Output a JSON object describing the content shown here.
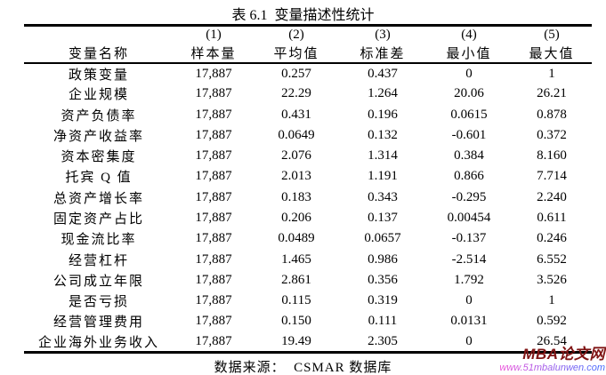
{
  "page": {
    "title": "表 6.1  变量描述性统计",
    "source_note": "数据来源：  CSMAR 数据库"
  },
  "table": {
    "column_numbers": [
      "",
      "(1)",
      "(2)",
      "(3)",
      "(4)",
      "(5)"
    ],
    "column_headers": [
      "变量名称",
      "样本量",
      "平均值",
      "标准差",
      "最小值",
      "最大值"
    ],
    "rows": [
      [
        "政策变量",
        "17,887",
        "0.257",
        "0.437",
        "0",
        "1"
      ],
      [
        "企业规模",
        "17,887",
        "22.29",
        "1.264",
        "20.06",
        "26.21"
      ],
      [
        "资产负债率",
        "17,887",
        "0.431",
        "0.196",
        "0.0615",
        "0.878"
      ],
      [
        "净资产收益率",
        "17,887",
        "0.0649",
        "0.132",
        "-0.601",
        "0.372"
      ],
      [
        "资本密集度",
        "17,887",
        "2.076",
        "1.314",
        "0.384",
        "8.160"
      ],
      [
        "托宾 Q 值",
        "17,887",
        "2.013",
        "1.191",
        "0.866",
        "7.714"
      ],
      [
        "总资产增长率",
        "17,887",
        "0.183",
        "0.343",
        "-0.295",
        "2.240"
      ],
      [
        "固定资产占比",
        "17,887",
        "0.206",
        "0.137",
        "0.00454",
        "0.611"
      ],
      [
        "现金流比率",
        "17,887",
        "0.0489",
        "0.0657",
        "-0.137",
        "0.246"
      ],
      [
        "经营杠杆",
        "17,887",
        "1.465",
        "0.986",
        "-2.514",
        "6.552"
      ],
      [
        "公司成立年限",
        "17,887",
        "2.861",
        "0.356",
        "1.792",
        "3.526"
      ],
      [
        "是否亏损",
        "17,887",
        "0.115",
        "0.319",
        "0",
        "1"
      ],
      [
        "经营管理费用",
        "17,887",
        "0.150",
        "0.111",
        "0.0131",
        "0.592"
      ],
      [
        "企业海外业务收入",
        "17,887",
        "19.49",
        "2.305",
        "0",
        "26.54"
      ]
    ]
  },
  "watermark": {
    "brand": "MBA论文网",
    "url": "www.51mbalunwen.com"
  },
  "colors": {
    "text": "#000000",
    "background": "#ffffff",
    "rule": "#000000",
    "watermark_brand": "#801515",
    "watermark_url_start": "#ef4fd8",
    "watermark_url_end": "#3f6bff"
  },
  "chart_data": {
    "type": "table",
    "title": "表 6.1 变量描述性统计",
    "columns": [
      "变量名称",
      "(1) 样本量",
      "(2) 平均值",
      "(3) 标准差",
      "(4) 最小值",
      "(5) 最大值"
    ],
    "rows": [
      [
        "政策变量",
        "17,887",
        "0.257",
        "0.437",
        "0",
        "1"
      ],
      [
        "企业规模",
        "17,887",
        "22.29",
        "1.264",
        "20.06",
        "26.21"
      ],
      [
        "资产负债率",
        "17,887",
        "0.431",
        "0.196",
        "0.0615",
        "0.878"
      ],
      [
        "净资产收益率",
        "17,887",
        "0.0649",
        "0.132",
        "-0.601",
        "0.372"
      ],
      [
        "资本密集度",
        "17,887",
        "2.076",
        "1.314",
        "0.384",
        "8.160"
      ],
      [
        "托宾 Q 值",
        "17,887",
        "2.013",
        "1.191",
        "0.866",
        "7.714"
      ],
      [
        "总资产增长率",
        "17,887",
        "0.183",
        "0.343",
        "-0.295",
        "2.240"
      ],
      [
        "固定资产占比",
        "17,887",
        "0.206",
        "0.137",
        "0.00454",
        "0.611"
      ],
      [
        "现金流比率",
        "17,887",
        "0.0489",
        "0.0657",
        "-0.137",
        "0.246"
      ],
      [
        "经营杠杆",
        "17,887",
        "1.465",
        "0.986",
        "-2.514",
        "6.552"
      ],
      [
        "公司成立年限",
        "17,887",
        "2.861",
        "0.356",
        "1.792",
        "3.526"
      ],
      [
        "是否亏损",
        "17,887",
        "0.115",
        "0.319",
        "0",
        "1"
      ],
      [
        "经营管理费用",
        "17,887",
        "0.150",
        "0.111",
        "0.0131",
        "0.592"
      ],
      [
        "企业海外业务收入",
        "17,887",
        "19.49",
        "2.305",
        "0",
        "26.54"
      ]
    ],
    "source": "数据来源：CSMAR 数据库"
  }
}
